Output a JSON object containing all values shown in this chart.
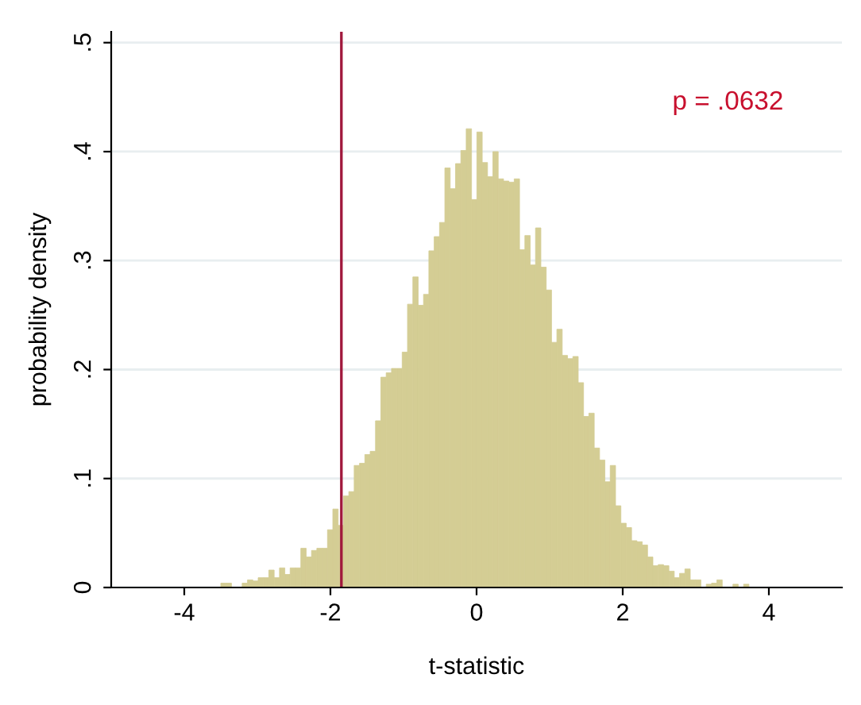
{
  "chart_data": {
    "type": "histogram",
    "xlabel": "t-statistic",
    "ylabel": "probability density",
    "bins": [
      -3.5,
      -3.427,
      -3.354,
      -3.281,
      -3.208,
      -3.135,
      -3.062,
      -2.989,
      -2.916,
      -2.843,
      -2.77,
      -2.697,
      -2.624,
      -2.551,
      -2.478,
      -2.405,
      -2.332,
      -2.259,
      -2.186,
      -2.113,
      -2.04,
      -1.967,
      -1.894,
      -1.821,
      -1.748,
      -1.675,
      -1.602,
      -1.529,
      -1.456,
      -1.383,
      -1.31,
      -1.237,
      -1.164,
      -1.091,
      -1.018,
      -0.945,
      -0.872,
      -0.799,
      -0.726,
      -0.653,
      -0.58,
      -0.507,
      -0.434,
      -0.361,
      -0.288,
      -0.215,
      -0.142,
      -0.069,
      0.004,
      0.077,
      0.15,
      0.223,
      0.296,
      0.369,
      0.442,
      0.515,
      0.588,
      0.661,
      0.734,
      0.807,
      0.88,
      0.953,
      1.026,
      1.099,
      1.172,
      1.245,
      1.318,
      1.391,
      1.464,
      1.537,
      1.61,
      1.683,
      1.756,
      1.829,
      1.902,
      1.975,
      2.048,
      2.121,
      2.194,
      2.267,
      2.34,
      2.413,
      2.486,
      2.559,
      2.632,
      2.705,
      2.778,
      2.851,
      2.924,
      2.997,
      3.07,
      3.143,
      3.216,
      3.289,
      3.362,
      3.435,
      3.508,
      3.581,
      3.654,
      3.727
    ],
    "values": [
      0.004,
      0.004,
      0,
      0,
      0.004,
      0.007,
      0.006,
      0.009,
      0.009,
      0.016,
      0.009,
      0.018,
      0.012,
      0.018,
      0.018,
      0.036,
      0.028,
      0.034,
      0.036,
      0.036,
      0.053,
      0.072,
      0.057,
      0.084,
      0.088,
      0.112,
      0.114,
      0.122,
      0.125,
      0.153,
      0.193,
      0.197,
      0.201,
      0.201,
      0.216,
      0.26,
      0.285,
      0.259,
      0.269,
      0.309,
      0.322,
      0.335,
      0.385,
      0.366,
      0.389,
      0.401,
      0.421,
      0.356,
      0.418,
      0.39,
      0.377,
      0.4,
      0.375,
      0.373,
      0.372,
      0.375,
      0.31,
      0.323,
      0.296,
      0.33,
      0.294,
      0.273,
      0.225,
      0.237,
      0.213,
      0.21,
      0.212,
      0.188,
      0.157,
      0.16,
      0.128,
      0.117,
      0.097,
      0.112,
      0.075,
      0.059,
      0.055,
      0.043,
      0.042,
      0.039,
      0.028,
      0.02,
      0.021,
      0.02,
      0.015,
      0.009,
      0.013,
      0.017,
      0.007,
      0.007,
      0,
      0.003,
      0.004,
      0.007,
      0,
      0,
      0.003,
      0,
      0.003
    ],
    "color": "#d4cd94",
    "xlim": [
      -5,
      5
    ],
    "ylim": [
      0,
      0.51
    ],
    "xticks": [
      -4,
      -2,
      0,
      2,
      4
    ],
    "yticks": [
      0,
      {
        "value": 0.1,
        "label": ".1"
      },
      {
        "value": 0.2,
        "label": ".2"
      },
      {
        "value": 0.3,
        "label": ".3"
      },
      {
        "value": 0.4,
        "label": ".4"
      },
      {
        "value": 0.5,
        "label": ".5"
      }
    ],
    "grid": "y",
    "ref_lines": [
      {
        "axis": "x",
        "value": -1.85,
        "color": "#a0183c"
      }
    ],
    "annotations": [
      "p = .0632"
    ]
  }
}
